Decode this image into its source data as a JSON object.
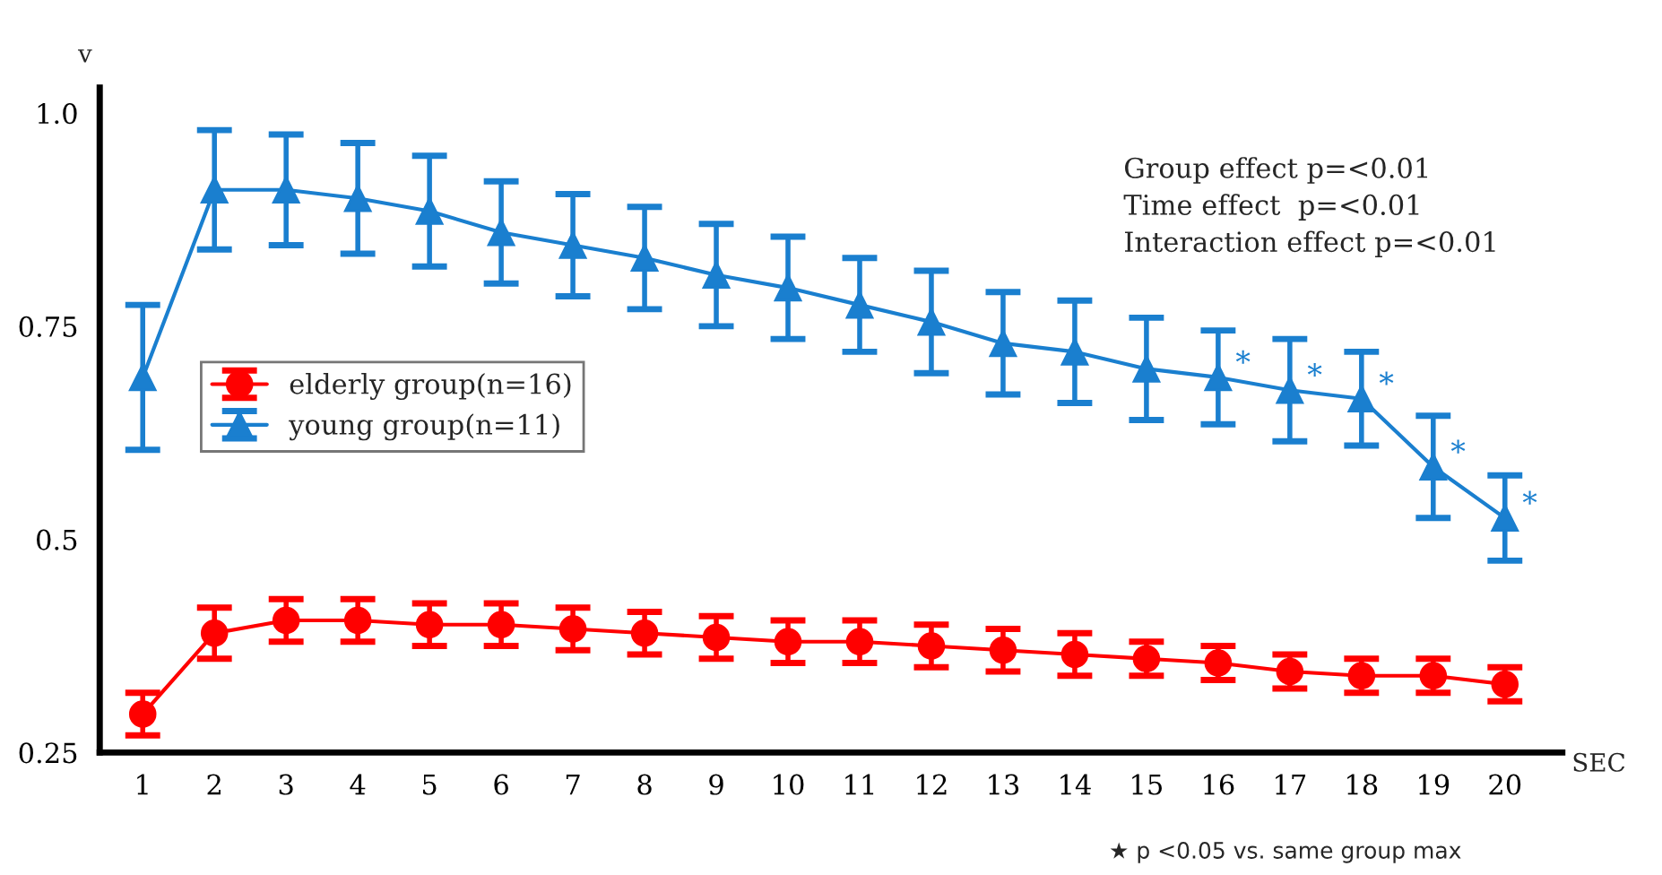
{
  "chart_data": {
    "type": "line",
    "xlabel": "SEC",
    "ylabel": "v",
    "categories": [
      "1",
      "2",
      "3",
      "4",
      "5",
      "6",
      "7",
      "8",
      "9",
      "10",
      "11",
      "12",
      "13",
      "14",
      "15",
      "16",
      "17",
      "18",
      "19",
      "20"
    ],
    "series": [
      {
        "name": "elderly group(n=16)",
        "color": "#ff0000",
        "marker": "circle",
        "values": [
          0.295,
          0.39,
          0.405,
          0.405,
          0.4,
          0.4,
          0.395,
          0.39,
          0.385,
          0.38,
          0.38,
          0.375,
          0.37,
          0.365,
          0.36,
          0.355,
          0.345,
          0.34,
          0.34,
          0.33
        ],
        "errors": [
          0.025,
          0.03,
          0.025,
          0.025,
          0.025,
          0.025,
          0.025,
          0.025,
          0.025,
          0.025,
          0.025,
          0.025,
          0.025,
          0.025,
          0.02,
          0.02,
          0.02,
          0.02,
          0.02,
          0.02
        ]
      },
      {
        "name": "young group(n=11)",
        "color": "#1a7fcf",
        "marker": "triangle",
        "values": [
          0.69,
          0.91,
          0.91,
          0.9,
          0.885,
          0.86,
          0.845,
          0.83,
          0.81,
          0.795,
          0.775,
          0.755,
          0.73,
          0.72,
          0.7,
          0.69,
          0.675,
          0.665,
          0.585,
          0.525
        ],
        "errors": [
          0.085,
          0.07,
          0.065,
          0.065,
          0.065,
          0.06,
          0.06,
          0.06,
          0.06,
          0.06,
          0.055,
          0.06,
          0.06,
          0.06,
          0.06,
          0.055,
          0.06,
          0.055,
          0.06,
          0.05
        ]
      }
    ],
    "ylim": [
      0.25,
      1.03
    ],
    "yticks": [
      0.25,
      0.5,
      0.75,
      {
        "value": 1.0,
        "label": "1.0"
      }
    ],
    "grid": false,
    "legend": "center left",
    "line_style": "solid",
    "annotations": [
      "Group effect p=<0.01\nTime effect  p=<0.01\nInteraction effect p=<0.01",
      {
        "text": "*",
        "x": "16",
        "y": 0.69
      },
      {
        "text": "*",
        "x": "17",
        "y": 0.675
      },
      {
        "text": "*",
        "x": "18",
        "y": 0.665
      },
      {
        "text": "*",
        "x": "19",
        "y": 0.585
      },
      {
        "text": "*",
        "x": "20",
        "y": 0.525
      },
      "★ p <0.05 vs. same group max"
    ]
  }
}
